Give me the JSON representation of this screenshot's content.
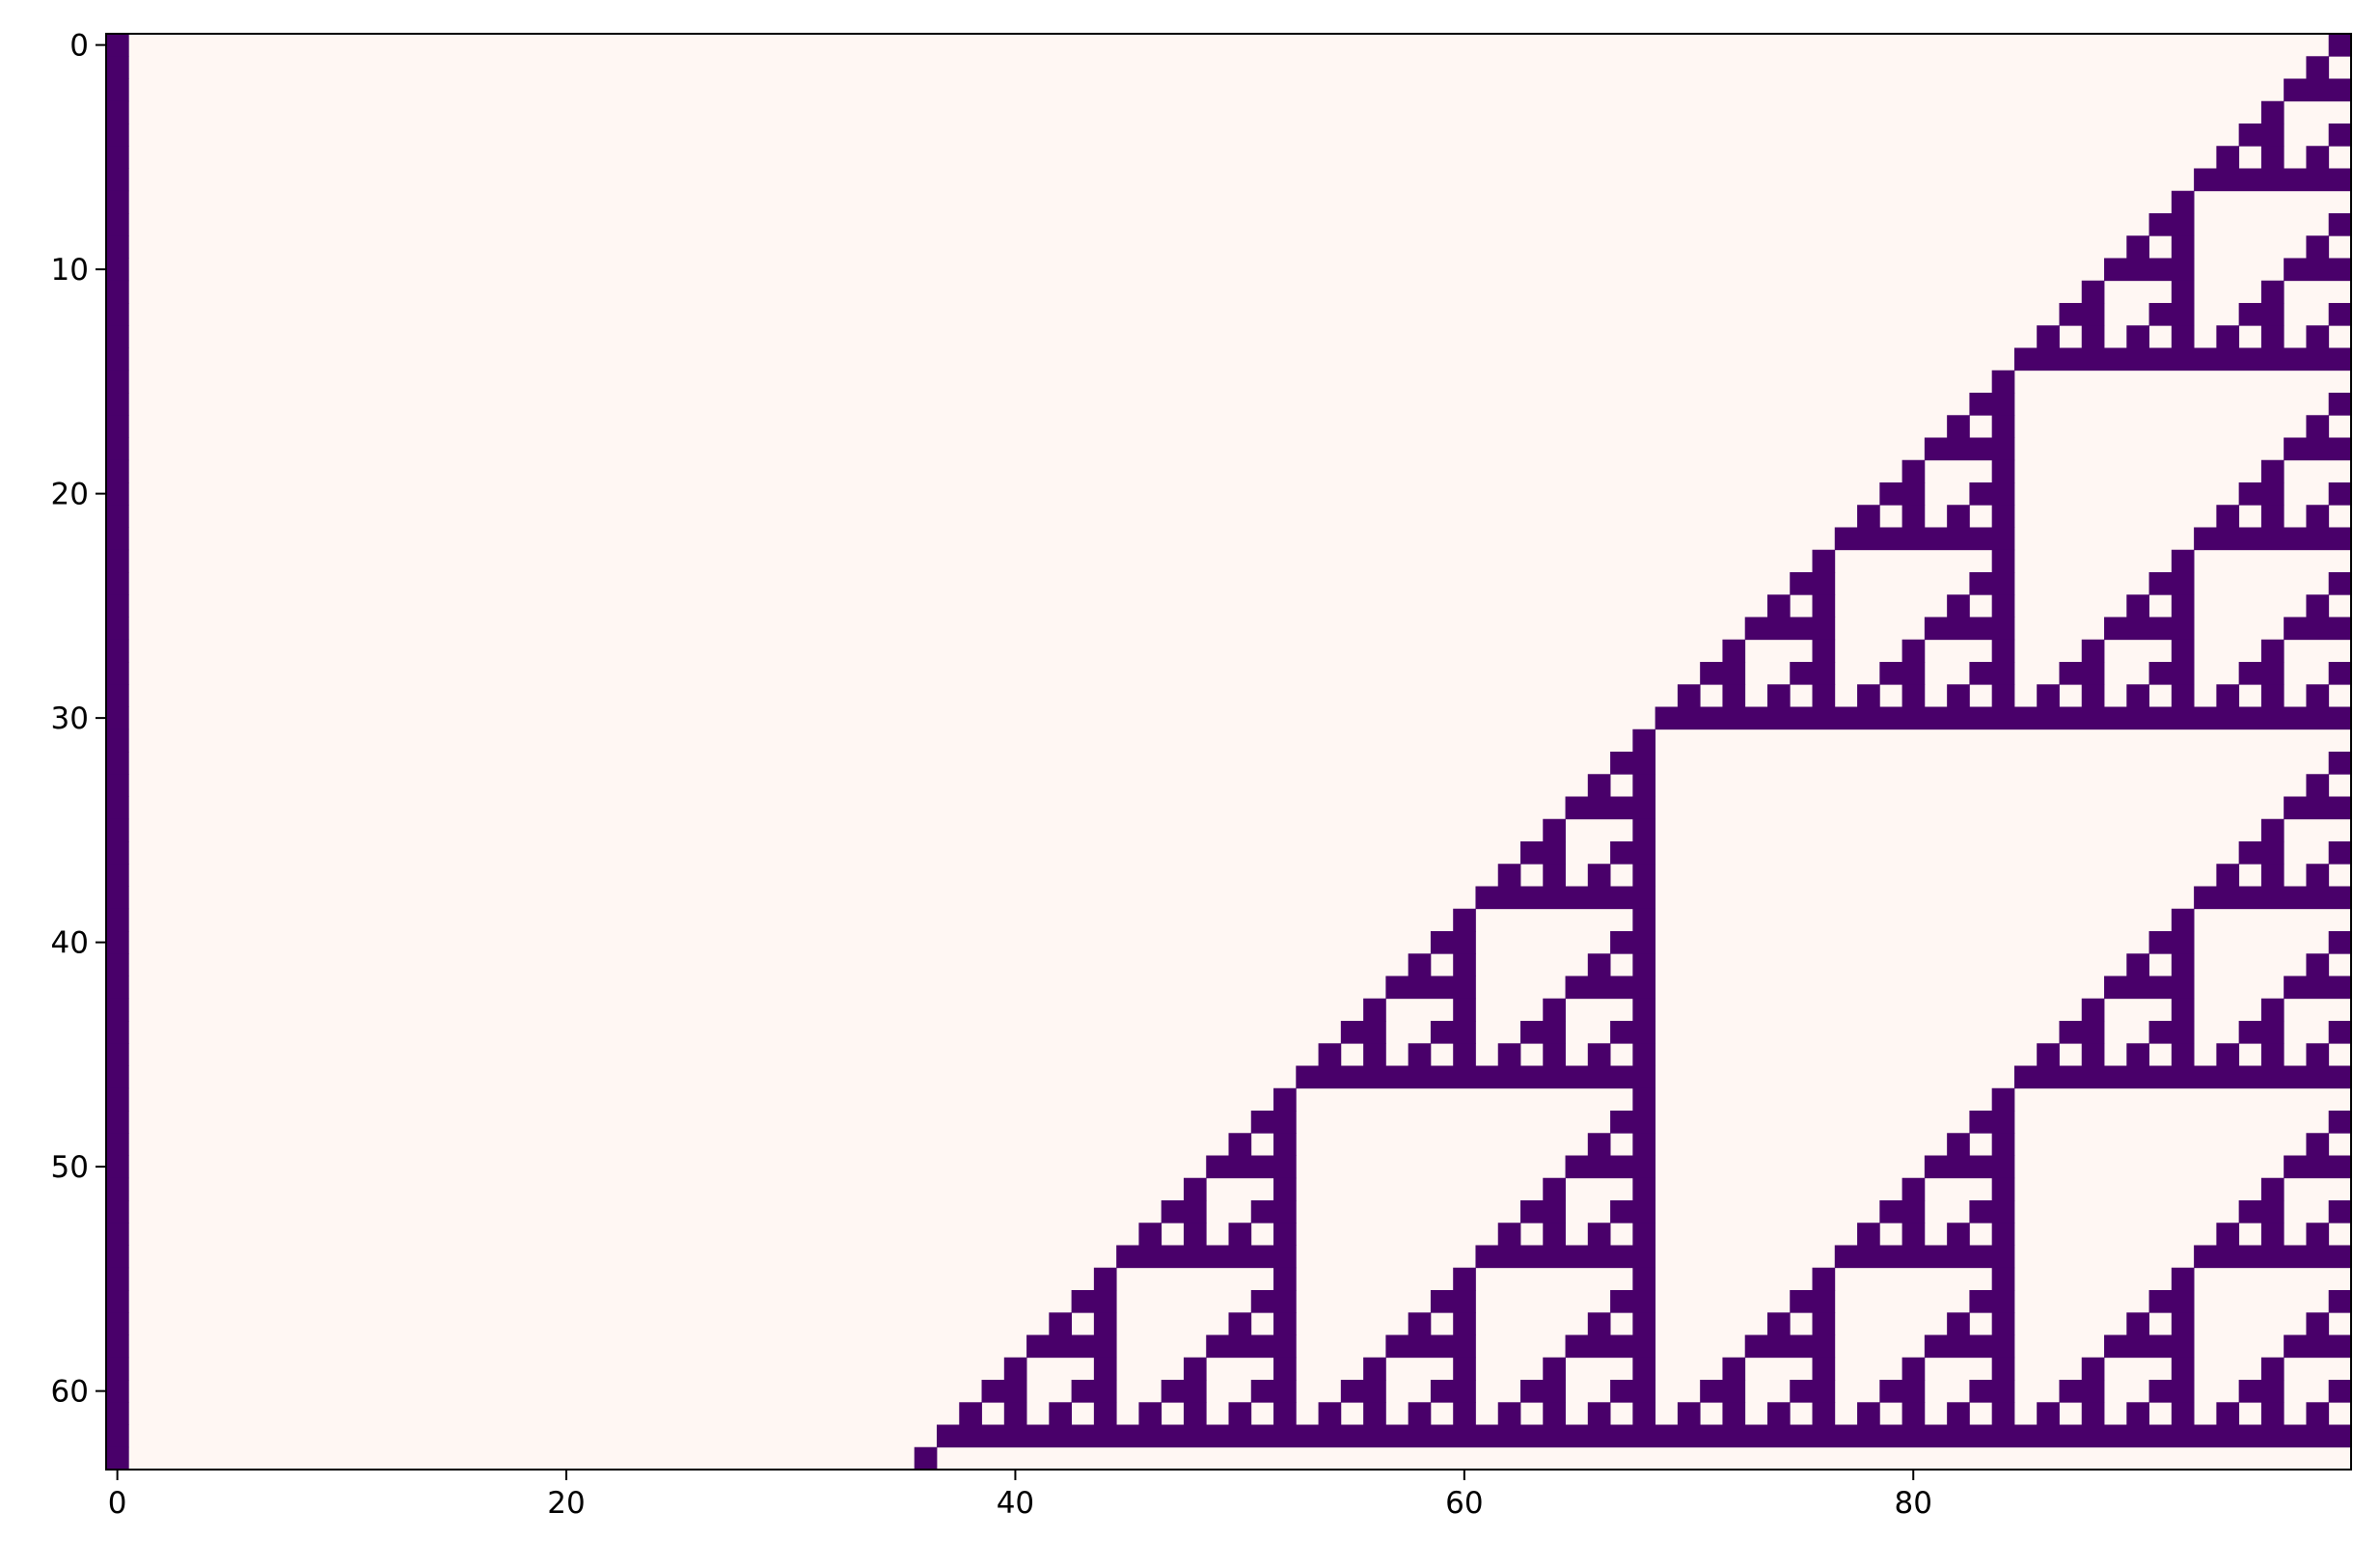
{
  "chart_data": {
    "type": "heatmap",
    "title": "",
    "xlabel": "",
    "ylabel": "",
    "colormap": "RdPu",
    "colors": {
      "zero": "#fff7f3",
      "one": "#49006a"
    },
    "grid": false,
    "rows": 64,
    "cols": 100,
    "encoding": "Cellular automaton rows: row 0 has cells at columns 0 and 99; each next row is computed by elementary rule 60 applied right-to-left (new[c] = old[c] XOR old[c+1], wrapping at the edge)",
    "generator": {
      "rule": "xor-with-right-neighbour-wrap",
      "initial_ones": [
        0,
        99
      ]
    },
    "xlim": [
      -0.5,
      99.5
    ],
    "ylim": [
      63.5,
      -0.5
    ],
    "xticks": [
      0,
      20,
      40,
      60,
      80
    ],
    "xtick_labels": [
      "0",
      "20",
      "40",
      "60",
      "80"
    ],
    "yticks": [
      0,
      10,
      20,
      30,
      40,
      50,
      60
    ],
    "ytick_labels": [
      "0",
      "10",
      "20",
      "30",
      "40",
      "50",
      "60"
    ]
  }
}
